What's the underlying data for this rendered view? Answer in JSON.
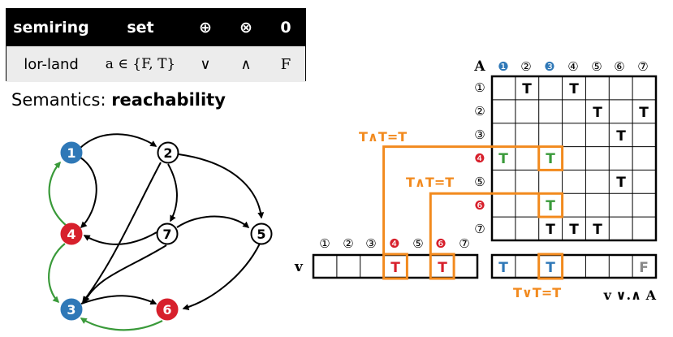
{
  "table": {
    "headers": [
      "semiring",
      "set",
      "⊕",
      "⊗",
      "0"
    ],
    "row": [
      "lor-land",
      "a ∈ {F, T}",
      "∨",
      "∧",
      "F"
    ]
  },
  "semantics": {
    "prefix": "Semantics:",
    "value": "reachability"
  },
  "graph": {
    "nodes": [
      {
        "id": "1",
        "label": "1",
        "fill": "#2f78b7",
        "text": "#ffffff"
      },
      {
        "id": "2",
        "label": "2",
        "fill": "#ffffff",
        "text": "#000000"
      },
      {
        "id": "4",
        "label": "4",
        "fill": "#d7202c",
        "text": "#ffffff"
      },
      {
        "id": "7",
        "label": "7",
        "fill": "#ffffff",
        "text": "#000000"
      },
      {
        "id": "5",
        "label": "5",
        "fill": "#ffffff",
        "text": "#000000"
      },
      {
        "id": "3",
        "label": "3",
        "fill": "#2f78b7",
        "text": "#ffffff"
      },
      {
        "id": "6",
        "label": "6",
        "fill": "#d7202c",
        "text": "#ffffff"
      }
    ]
  },
  "matrix": {
    "label": "A",
    "col_headers": [
      "❶",
      "②",
      "❸",
      "④",
      "⑤",
      "⑥",
      "⑦"
    ],
    "row_headers": [
      "①",
      "②",
      "③",
      "❹",
      "⑤",
      "❻",
      "⑦"
    ],
    "cells": [
      [
        "",
        "T",
        "",
        "T",
        "",
        "",
        ""
      ],
      [
        "",
        "",
        "",
        "",
        "T",
        "",
        "T"
      ],
      [
        "",
        "",
        "",
        "",
        "",
        "T",
        ""
      ],
      [
        "T",
        "",
        "T",
        "",
        "",
        "",
        ""
      ],
      [
        "",
        "",
        "",
        "",
        "",
        "T",
        ""
      ],
      [
        "",
        "",
        "T",
        "",
        "",
        "",
        ""
      ],
      [
        "",
        "",
        "T",
        "T",
        "T",
        "",
        ""
      ]
    ]
  },
  "vector": {
    "label": "v",
    "col_headers": [
      "①",
      "②",
      "③",
      "❹",
      "⑤",
      "❻",
      "⑦"
    ],
    "cells": [
      "",
      "",
      "",
      "T",
      "",
      "T",
      ""
    ]
  },
  "result": {
    "cells": [
      "T",
      "",
      "T",
      "",
      "",
      "",
      "F"
    ],
    "label": "v ∨.∧ A"
  },
  "annotations": {
    "and_1": "T∧T=T",
    "and_2": "T∧T=T",
    "or": "T∨T=T"
  },
  "colors": {
    "orange": "#f28a1e",
    "green": "#3a9a3a",
    "blue": "#2f78b7",
    "red": "#d7202c",
    "gray": "#888888"
  }
}
